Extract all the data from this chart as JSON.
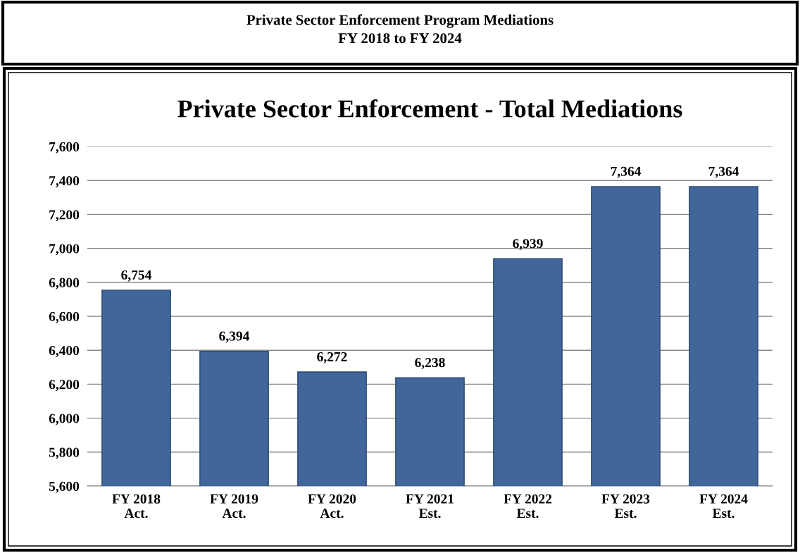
{
  "chart_data": {
    "type": "bar",
    "title": "Private Sector Enforcement - Total Mediations",
    "annotations": [
      "Private Sector Enforcement Program Mediations",
      "FY 2018 to FY 2024"
    ],
    "categories": [
      "FY 2018\nAct.",
      "FY 2019\nAct.",
      "FY 2020\nAct.",
      "FY 2021\nEst.",
      "FY 2022\nEst.",
      "FY 2023\nEst.",
      "FY 2024\nEst."
    ],
    "values": [
      6754,
      6394,
      6272,
      6238,
      6939,
      7364,
      7364
    ],
    "value_labels": [
      "6,754",
      "6,394",
      "6,272",
      "6,238",
      "6,939",
      "7,364",
      "7,364"
    ],
    "color": "#41679a",
    "ylim": [
      5600,
      7600
    ],
    "yticks": [
      {
        "value": 5600,
        "label": "5,600"
      },
      {
        "value": 5800,
        "label": "5,800"
      },
      {
        "value": 6000,
        "label": "6,000"
      },
      {
        "value": 6200,
        "label": "6,200"
      },
      {
        "value": 6400,
        "label": "6,400"
      },
      {
        "value": 6600,
        "label": "6,600"
      },
      {
        "value": 6800,
        "label": "6,800"
      },
      {
        "value": 7000,
        "label": "7,000"
      },
      {
        "value": 7200,
        "label": "7,200"
      },
      {
        "value": 7400,
        "label": "7,400"
      },
      {
        "value": 7600,
        "label": "7,600"
      }
    ],
    "grid": "y"
  }
}
